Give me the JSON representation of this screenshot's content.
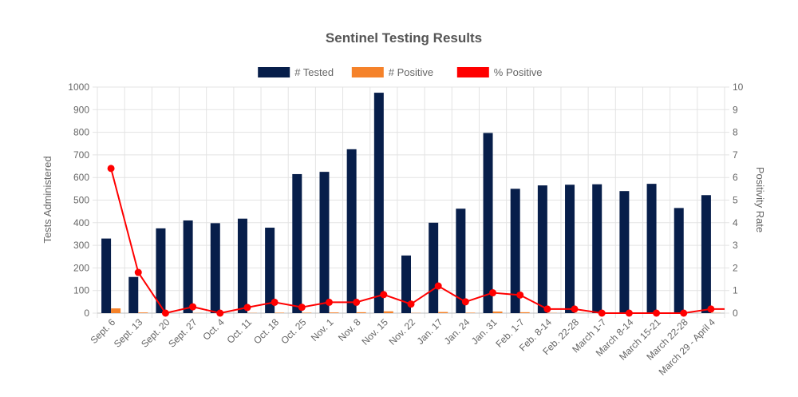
{
  "chart_data": {
    "type": "bar",
    "title": "Sentinel Testing Results",
    "ylabel": "Tests Administered",
    "y2label": "Positivity Rate",
    "ylim": [
      0,
      1000
    ],
    "y2lim": [
      0,
      10
    ],
    "yticks": [
      "0",
      "100",
      "200",
      "300",
      "400",
      "500",
      "600",
      "700",
      "800",
      "900",
      "1000"
    ],
    "y2ticks": [
      "0",
      "1",
      "2",
      "3",
      "4",
      "5",
      "6",
      "7",
      "8",
      "9",
      "10"
    ],
    "grid": true,
    "legend_position": "top",
    "categories": [
      "Sept. 6",
      "Sept. 13",
      "Sept. 20",
      "Sept. 27",
      "Oct. 4",
      "Oct. 11",
      "Oct. 18",
      "Oct. 25",
      "Nov. 1",
      "Nov. 8",
      "Nov. 15",
      "Nov. 22",
      "Jan. 17",
      "Jan. 24",
      "Jan. 31",
      "Feb. 1-7",
      "Feb. 8-14",
      "Feb. 22-28",
      "March 1-7",
      "March 8-14",
      "March 15-21",
      "March 22-28",
      "March 29 - April 4"
    ],
    "series": [
      {
        "name": "# Tested",
        "kind": "bar",
        "axis": "left",
        "color": "#071e4a",
        "values": [
          330,
          160,
          375,
          410,
          398,
          418,
          378,
          615,
          625,
          725,
          975,
          255,
          400,
          462,
          797,
          550,
          565,
          568,
          570,
          540,
          572,
          465,
          522
        ]
      },
      {
        "name": "# Positive",
        "kind": "bar",
        "axis": "left",
        "color": "#f5822a",
        "values": [
          21,
          3,
          0,
          1,
          0,
          1,
          2,
          2,
          3,
          4,
          8,
          1,
          5,
          2,
          7,
          4,
          1,
          1,
          0,
          0,
          0,
          0,
          1
        ]
      },
      {
        "name": "% Positive",
        "kind": "line",
        "axis": "right",
        "color": "#ff0000",
        "values": [
          6.4,
          1.8,
          0.0,
          0.28,
          0.0,
          0.25,
          0.48,
          0.26,
          0.48,
          0.48,
          0.82,
          0.4,
          1.2,
          0.5,
          0.9,
          0.8,
          0.18,
          0.18,
          0.0,
          0.0,
          0.0,
          0.0,
          0.18
        ]
      }
    ]
  }
}
